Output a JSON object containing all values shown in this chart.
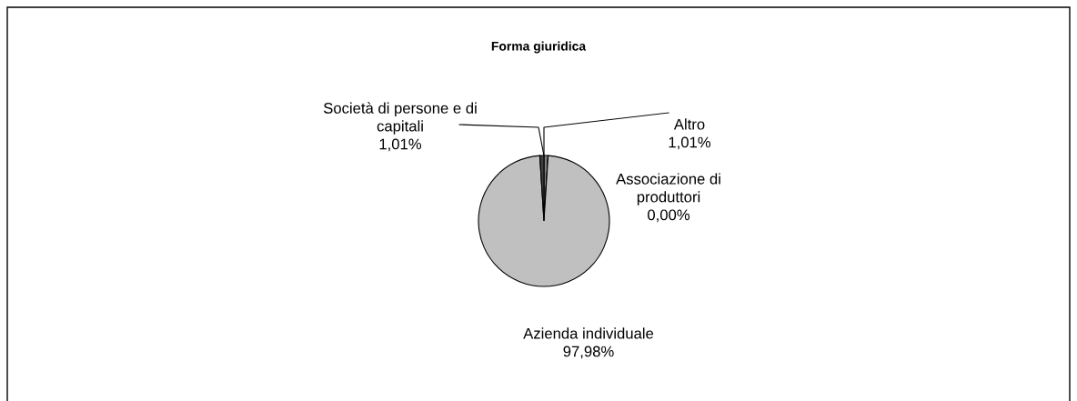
{
  "chart_data": {
    "type": "pie",
    "title": "Forma giuridica",
    "categories": [
      "Altro",
      "Associazione di produttori",
      "Azienda individuale",
      "Società di persone e di capitali"
    ],
    "values": [
      1.01,
      0.0,
      97.98,
      1.01
    ],
    "colors": [
      "#808080",
      "#ffffff",
      "#c0c0c0",
      "#404040"
    ],
    "value_labels": [
      "1,01%",
      "0,00%",
      "97,98%",
      "1,01%"
    ],
    "legend": false
  }
}
